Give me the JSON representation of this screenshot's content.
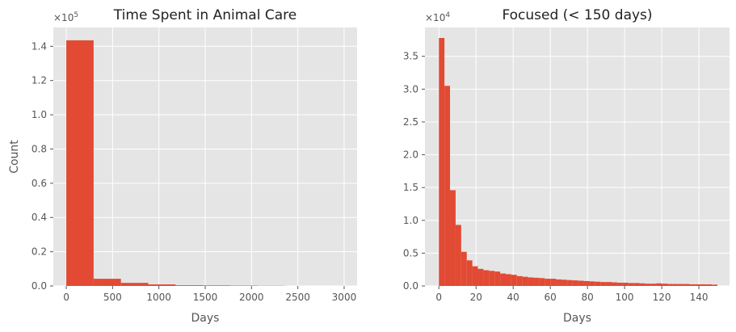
{
  "chart_data": [
    {
      "type": "bar",
      "title": "Time Spent in Animal Care",
      "xlabel": "Days",
      "ylabel": "Count",
      "y_multiplier": "×10",
      "y_multiplier_exp": "5",
      "xlim": [
        -140,
        3140
      ],
      "ylim": [
        0,
        1.51
      ],
      "xticks": [
        0,
        500,
        1000,
        1500,
        2000,
        2500,
        3000
      ],
      "yticks": [
        0.0,
        0.2,
        0.4,
        0.6,
        0.8,
        1.0,
        1.2,
        1.4
      ],
      "ytick_labels": [
        "0.0",
        "0.2",
        "0.4",
        "0.6",
        "0.8",
        "1.0",
        "1.2",
        "1.4"
      ],
      "bin_width": 295,
      "bins": [
        0,
        295,
        590,
        885,
        1180,
        1475,
        1770,
        2065,
        2360,
        2655
      ],
      "values": [
        1.435,
        0.042,
        0.018,
        0.009,
        0.004,
        0.003,
        0.002,
        0.001,
        0.0,
        0.0
      ],
      "bar_color": "#e24a33",
      "background": "#e5e5e5",
      "grid": true
    },
    {
      "type": "bar",
      "title": "Focused (< 150 days)",
      "xlabel": "Days",
      "ylabel": "",
      "y_multiplier": "×10",
      "y_multiplier_exp": "4",
      "xlim": [
        -7.5,
        156.5
      ],
      "ylim": [
        0,
        3.94
      ],
      "xticks": [
        0,
        20,
        40,
        60,
        80,
        100,
        120,
        140
      ],
      "yticks": [
        0.0,
        0.5,
        1.0,
        1.5,
        2.0,
        2.5,
        3.0,
        3.5
      ],
      "ytick_labels": [
        "0.0",
        "0.5",
        "1.0",
        "1.5",
        "2.0",
        "2.5",
        "3.0",
        "3.5"
      ],
      "bin_width": 3,
      "bins": [
        0,
        3,
        6,
        9,
        12,
        15,
        18,
        21,
        24,
        27,
        30,
        33,
        36,
        39,
        42,
        45,
        48,
        51,
        54,
        57,
        60,
        63,
        66,
        69,
        72,
        75,
        78,
        81,
        84,
        87,
        90,
        93,
        96,
        99,
        102,
        105,
        108,
        111,
        114,
        117,
        120,
        123,
        126,
        129,
        132,
        135,
        138,
        141,
        144,
        147
      ],
      "values": [
        3.78,
        3.05,
        1.46,
        0.93,
        0.52,
        0.39,
        0.3,
        0.26,
        0.24,
        0.23,
        0.22,
        0.19,
        0.18,
        0.17,
        0.15,
        0.14,
        0.13,
        0.125,
        0.12,
        0.11,
        0.11,
        0.1,
        0.095,
        0.09,
        0.085,
        0.08,
        0.075,
        0.07,
        0.065,
        0.06,
        0.06,
        0.055,
        0.05,
        0.05,
        0.045,
        0.045,
        0.04,
        0.035,
        0.035,
        0.04,
        0.035,
        0.03,
        0.03,
        0.03,
        0.03,
        0.025,
        0.025,
        0.025,
        0.025,
        0.02
      ],
      "bar_color": "#e24a33",
      "background": "#e5e5e5",
      "grid": true
    }
  ]
}
